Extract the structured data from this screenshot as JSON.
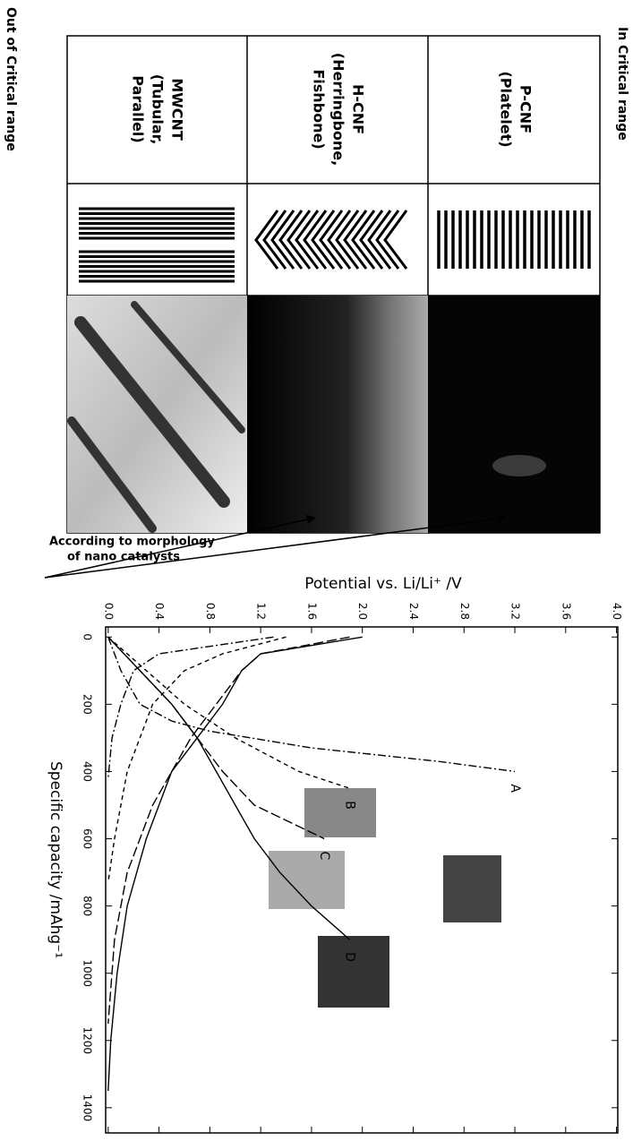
{
  "labels": {
    "in_critical": "In Critical range",
    "out_critical": "Out of Critical range",
    "annotation": [
      "According to morphology",
      "of nano catalysts"
    ]
  },
  "table": {
    "rows": [
      {
        "name": [
          "P-CNF",
          "(Platelet)"
        ]
      },
      {
        "name": [
          "H-CNF",
          "(Herringbone,",
          "Fishbone)"
        ]
      },
      {
        "name": [
          "MWCNT",
          "(Tubular,",
          "Parallel)"
        ]
      }
    ]
  },
  "chart_data": {
    "type": "line",
    "xlabel": "Specific capacity /mAhg⁻¹",
    "ylabel": "Potential vs. Li/Li⁺ /V",
    "xlim": [
      -30,
      1475
    ],
    "ylim": [
      -0.02,
      4.01
    ],
    "xticks": [
      0,
      200,
      400,
      600,
      800,
      1000,
      1200,
      1400
    ],
    "yticks": [
      {
        "value": 0,
        "label": "0.0"
      },
      0.4,
      0.8,
      1.2,
      1.6,
      {
        "value": 2,
        "label": "2.0"
      },
      2.4,
      2.8,
      3.2,
      3.6,
      {
        "value": 4,
        "label": "4.0"
      }
    ],
    "series": [
      {
        "name": "A",
        "color": "#000000",
        "dash": "dash-dot",
        "x": [
          0,
          100,
          200,
          250,
          280,
          330,
          370,
          400
        ],
        "values": [
          0,
          0.1,
          0.25,
          0.5,
          0.8,
          1.6,
          2.6,
          3.2
        ]
      },
      {
        "color": "#000000",
        "dash": "dash-dot",
        "x": [
          0,
          50,
          100,
          200,
          300,
          420
        ],
        "values": [
          1.3,
          0.4,
          0.2,
          0.1,
          0.03,
          0
        ]
      },
      {
        "name": "B",
        "color": "#000000",
        "dash": "dashed",
        "x": [
          0,
          100,
          200,
          300,
          400,
          450
        ],
        "values": [
          0,
          0.3,
          0.6,
          1.0,
          1.5,
          1.9
        ]
      },
      {
        "color": "#000000",
        "dash": "dashed",
        "x": [
          0,
          50,
          100,
          200,
          400,
          600,
          730
        ],
        "values": [
          1.4,
          0.9,
          0.6,
          0.35,
          0.15,
          0.05,
          0
        ]
      },
      {
        "name": "C",
        "color": "#000000",
        "dash": "long-dashed",
        "x": [
          0,
          200,
          300,
          400,
          500,
          600
        ],
        "values": [
          0,
          0.5,
          0.7,
          0.9,
          1.15,
          1.7
        ]
      },
      {
        "color": "#000000",
        "dash": "long-dashed",
        "x": [
          0,
          50,
          100,
          200,
          300,
          500,
          700,
          900,
          1150
        ],
        "values": [
          1.9,
          1.2,
          1.05,
          0.85,
          0.65,
          0.35,
          0.15,
          0.05,
          0
        ]
      },
      {
        "name": "D",
        "color": "#000000",
        "dash": "solid",
        "x": [
          0,
          200,
          300,
          400,
          500,
          600,
          700,
          800,
          900
        ],
        "values": [
          0,
          0.5,
          0.7,
          0.85,
          1.0,
          1.15,
          1.35,
          1.6,
          1.9
        ]
      },
      {
        "color": "#000000",
        "dash": "solid",
        "x": [
          0,
          50,
          100,
          200,
          300,
          400,
          600,
          800,
          1000,
          1200,
          1350
        ],
        "values": [
          2.0,
          1.2,
          1.05,
          0.9,
          0.7,
          0.5,
          0.3,
          0.15,
          0.07,
          0.02,
          0
        ]
      }
    ]
  }
}
